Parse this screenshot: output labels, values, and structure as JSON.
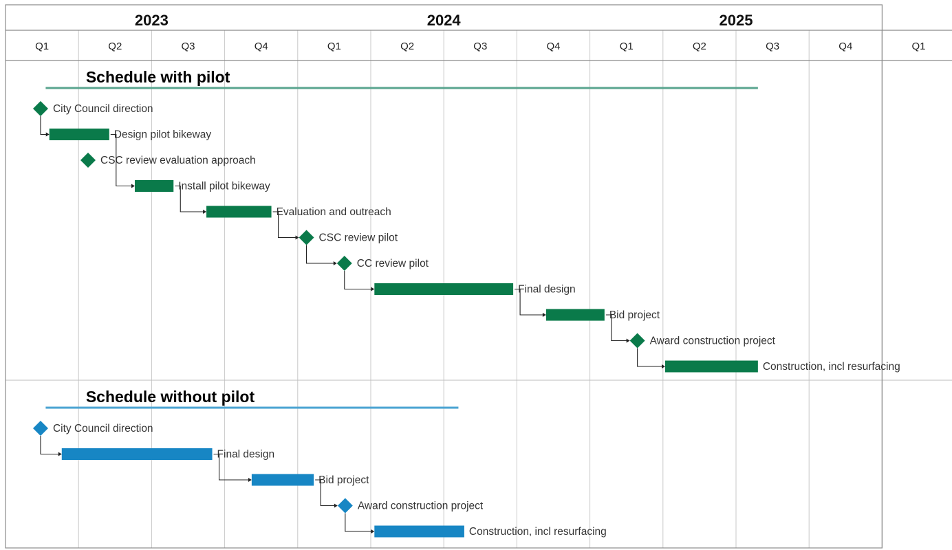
{
  "colors": {
    "pilot": "#0a7a4a",
    "pilot_rule": "#5aa58f",
    "nopilot": "#1786c4",
    "nopilot_rule": "#4aa3d2",
    "grid": "#c8c8c8",
    "connector": "#222222"
  },
  "chart_data": {
    "type": "gantt",
    "years": [
      "2023",
      "2024",
      "2025"
    ],
    "quarters": [
      "Q1",
      "Q2",
      "Q3",
      "Q4",
      "Q1",
      "Q2",
      "Q3",
      "Q4",
      "Q1",
      "Q2",
      "Q3",
      "Q4",
      "Q1"
    ],
    "x_unit": "quarters elapsed since start of 2023 Q1",
    "x_range": [
      0,
      13
    ],
    "sections": [
      {
        "title": "Schedule with pilot",
        "color_key": "pilot",
        "span": [
          0.55,
          10.3
        ],
        "tasks": [
          {
            "label": "City Council direction",
            "type": "milestone",
            "at": 0.48
          },
          {
            "label": "Design pilot bikeway",
            "type": "bar",
            "start": 0.6,
            "end": 1.42
          },
          {
            "label": "CSC review evaluation approach",
            "type": "milestone",
            "at": 1.13
          },
          {
            "label": "Install pilot bikeway",
            "type": "bar",
            "start": 1.77,
            "end": 2.3
          },
          {
            "label": "Evaluation and outreach",
            "type": "bar",
            "start": 2.75,
            "end": 3.64
          },
          {
            "label": "CSC review pilot",
            "type": "milestone",
            "at": 4.12
          },
          {
            "label": "CC review pilot",
            "type": "milestone",
            "at": 4.64
          },
          {
            "label": "Final design",
            "type": "bar",
            "start": 5.05,
            "end": 6.95
          },
          {
            "label": "Bid project",
            "type": "bar",
            "start": 7.4,
            "end": 8.2
          },
          {
            "label": "Award construction project",
            "type": "milestone",
            "at": 8.65
          },
          {
            "label": "Construction, incl resurfacing",
            "type": "bar",
            "start": 9.03,
            "end": 10.3
          }
        ]
      },
      {
        "title": "Schedule without pilot",
        "color_key": "nopilot",
        "span": [
          0.55,
          6.2
        ],
        "tasks": [
          {
            "label": "City Council direction",
            "type": "milestone",
            "at": 0.48
          },
          {
            "label": "Final design",
            "type": "bar",
            "start": 0.77,
            "end": 2.83
          },
          {
            "label": "Bid project",
            "type": "bar",
            "start": 3.37,
            "end": 4.22
          },
          {
            "label": "Award construction project",
            "type": "milestone",
            "at": 4.65
          },
          {
            "label": "Construction, incl resurfacing",
            "type": "bar",
            "start": 5.05,
            "end": 6.28
          }
        ]
      }
    ]
  }
}
